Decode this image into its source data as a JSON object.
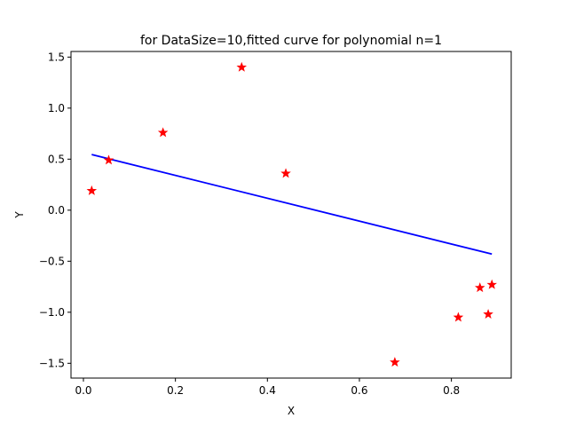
{
  "chart_data": {
    "type": "scatter",
    "title": "for DataSize=10,fitted curve for polynomial n=1",
    "xlabel": "X",
    "ylabel": "Y",
    "xlim": [
      -0.027,
      0.93
    ],
    "ylim": [
      -1.645,
      1.555
    ],
    "xticks": [
      0.0,
      0.2,
      0.4,
      0.6,
      0.8
    ],
    "xtick_labels": [
      "0.0",
      "0.2",
      "0.4",
      "0.6",
      "0.8"
    ],
    "yticks": [
      -1.5,
      -1.0,
      -0.5,
      0.0,
      0.5,
      1.0,
      1.5
    ],
    "ytick_labels": [
      "−1.5",
      "−1.0",
      "−0.5",
      "0.0",
      "0.5",
      "1.0",
      "1.5"
    ],
    "grid": false,
    "series": [
      {
        "kind": "scatter",
        "marker": "star",
        "color": "#ff0000",
        "points": [
          {
            "x": 0.018,
            "y": 0.19
          },
          {
            "x": 0.055,
            "y": 0.49
          },
          {
            "x": 0.173,
            "y": 0.76
          },
          {
            "x": 0.344,
            "y": 1.4
          },
          {
            "x": 0.44,
            "y": 0.36
          },
          {
            "x": 0.677,
            "y": -1.49
          },
          {
            "x": 0.815,
            "y": -1.05
          },
          {
            "x": 0.862,
            "y": -0.76
          },
          {
            "x": 0.88,
            "y": -1.02
          },
          {
            "x": 0.888,
            "y": -0.73
          }
        ]
      },
      {
        "kind": "line",
        "color": "#0000ff",
        "points": [
          {
            "x": 0.018,
            "y": 0.545
          },
          {
            "x": 0.888,
            "y": -0.43
          }
        ]
      }
    ]
  }
}
